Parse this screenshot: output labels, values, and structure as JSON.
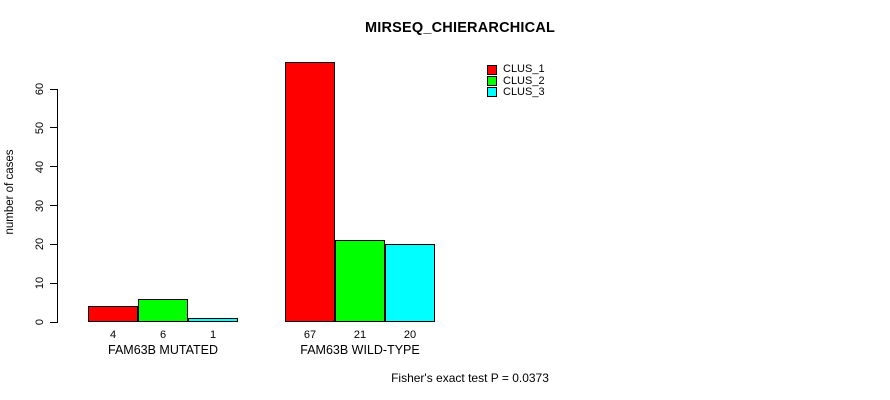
{
  "colors": {
    "background": "#FFFFFF",
    "axis": "#000000",
    "text": "#000000",
    "clus_1": "#FF0000",
    "clus_2": "#00FF00",
    "clus_3": "#00FFFF"
  },
  "chart_data": {
    "type": "bar",
    "title": "MIRSEQ_CHIERARCHICAL",
    "xlabel": "",
    "ylabel": "number of cases",
    "ylim": [
      0,
      60
    ],
    "yticks": [
      0,
      10,
      20,
      30,
      40,
      50,
      60
    ],
    "grid": false,
    "legend_position": "top-right",
    "categories": [
      "FAM63B MUTATED",
      "FAM63B WILD-TYPE"
    ],
    "series": [
      {
        "name": "CLUS_1",
        "color": "#FF0000",
        "values": [
          4,
          67
        ]
      },
      {
        "name": "CLUS_2",
        "color": "#00FF00",
        "values": [
          6,
          21
        ]
      },
      {
        "name": "CLUS_3",
        "color": "#00FFFF",
        "values": [
          1,
          20
        ]
      }
    ],
    "bar_value_labels": [
      [
        "4",
        "6",
        "1"
      ],
      [
        "67",
        "21",
        "20"
      ]
    ],
    "annotation": "Fisher's exact test P = 0.0373"
  }
}
